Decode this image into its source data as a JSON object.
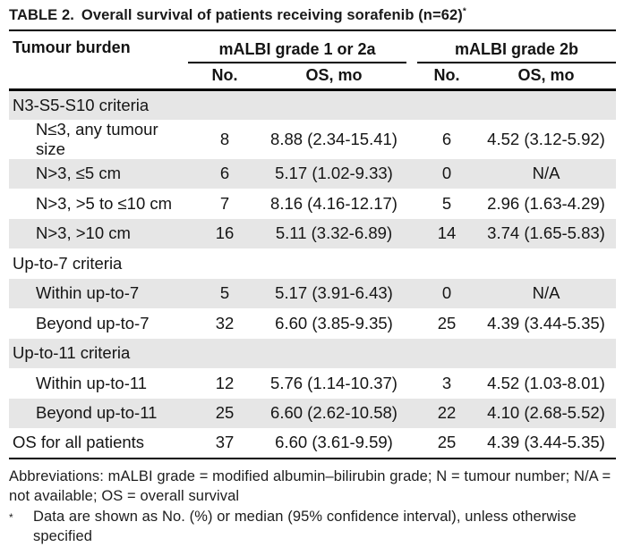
{
  "colors": {
    "stripe": "#e6e6e6",
    "rule": "#000000",
    "text": "#111111"
  },
  "title": {
    "label": "TABLE 2.",
    "text": "Overall survival of patients receiving sorafenib (n=62)",
    "footnote_marker": "*"
  },
  "table": {
    "col1_header": "Tumour burden",
    "groups": [
      {
        "label": "mALBI grade 1 or 2a"
      },
      {
        "label": "mALBI grade 2b"
      }
    ],
    "subheaders": [
      "No.",
      "OS, mo",
      "No.",
      "OS, mo"
    ],
    "rows": [
      {
        "label": "N3-S5-S10 criteria",
        "type": "section"
      },
      {
        "label": "N≤3, any tumour size",
        "type": "data",
        "no1": "8",
        "os1": "8.88 (2.34-15.41)",
        "no2": "6",
        "os2": "4.52 (3.12-5.92)"
      },
      {
        "label": "N>3, ≤5 cm",
        "type": "data",
        "no1": "6",
        "os1": "5.17 (1.02-9.33)",
        "no2": "0",
        "os2": "N/A"
      },
      {
        "label": "N>3, >5 to ≤10 cm",
        "type": "data",
        "no1": "7",
        "os1": "8.16 (4.16-12.17)",
        "no2": "5",
        "os2": "2.96 (1.63-4.29)"
      },
      {
        "label": "N>3, >10 cm",
        "type": "data",
        "no1": "16",
        "os1": "5.11 (3.32-6.89)",
        "no2": "14",
        "os2": "3.74 (1.65-5.83)"
      },
      {
        "label": "Up-to-7 criteria",
        "type": "section"
      },
      {
        "label": "Within up-to-7",
        "type": "data",
        "no1": "5",
        "os1": "5.17 (3.91-6.43)",
        "no2": "0",
        "os2": "N/A"
      },
      {
        "label": "Beyond up-to-7",
        "type": "data",
        "no1": "32",
        "os1": "6.60 (3.85-9.35)",
        "no2": "25",
        "os2": "4.39 (3.44-5.35)"
      },
      {
        "label": "Up-to-11 criteria",
        "type": "section"
      },
      {
        "label": "Within up-to-11",
        "type": "data",
        "no1": "12",
        "os1": "5.76 (1.14-10.37)",
        "no2": "3",
        "os2": "4.52 (1.03-8.01)"
      },
      {
        "label": "Beyond up-to-11",
        "type": "data",
        "no1": "25",
        "os1": "6.60 (2.62-10.58)",
        "no2": "22",
        "os2": "4.10 (2.68-5.52)"
      },
      {
        "label": "OS for all patients",
        "type": "total",
        "no1": "37",
        "os1": "6.60 (3.61-9.59)",
        "no2": "25",
        "os2": "4.39 (3.44-5.35)"
      }
    ]
  },
  "footnotes": {
    "abbreviations": "Abbreviations: mALBI grade = modified albumin–bilirubin grade; N = tumour number; N/A = not available; OS = overall survival",
    "asterisk_marker": "*",
    "asterisk_text": "Data are shown as No. (%) or median (95% confidence interval), unless otherwise specified"
  }
}
